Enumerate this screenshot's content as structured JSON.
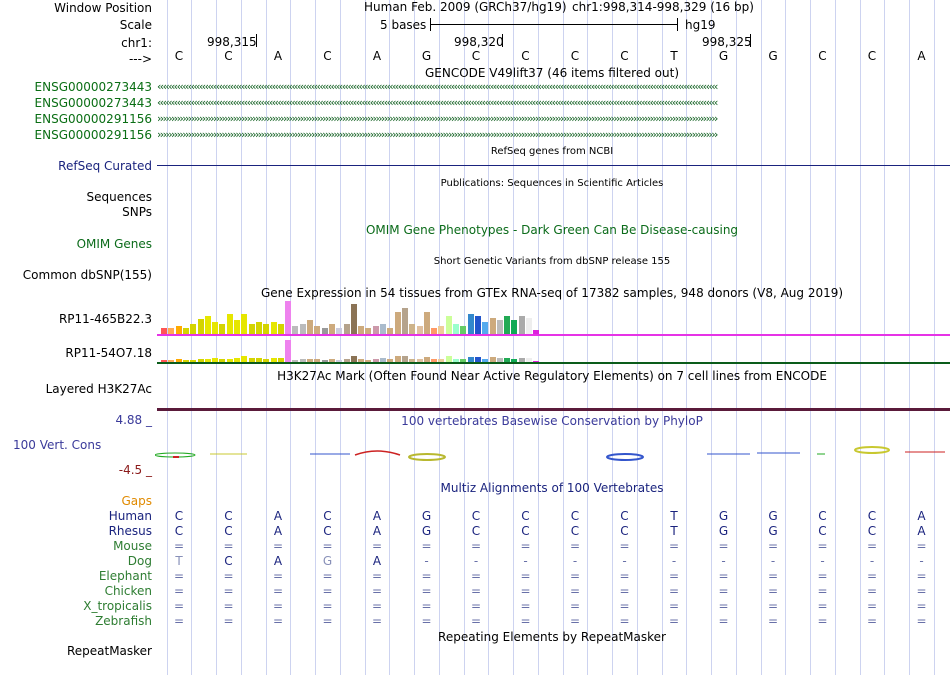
{
  "labels": {
    "window_position": "Window Position",
    "scale": "Scale",
    "chr": "chr1:",
    "strand": "--->",
    "tracks": [
      {
        "text": "ENSG00000273443",
        "color": "#0a6e14"
      },
      {
        "text": "ENSG00000273443",
        "color": "#0a6e14"
      },
      {
        "text": "ENSG00000291156",
        "color": "#0a6e14"
      },
      {
        "text": "ENSG00000291156",
        "color": "#0a6e14"
      }
    ],
    "refseq": "RefSeq Curated",
    "sequences": "Sequences",
    "snps": "SNPs",
    "omim": "OMIM Genes",
    "dbsnp": "Common dbSNP(155)",
    "rp1": "RP11-465B22.3",
    "rp2": "RP11-54O7.18",
    "h3k27": "Layered H3K27Ac",
    "phylop_top": "4.88 _",
    "phylop_label": "100 Vert. Cons",
    "phylop_bottom": "-4.5 _",
    "gaps": "Gaps",
    "species": [
      {
        "name": "Human",
        "color": "#1a237e"
      },
      {
        "name": "Rhesus",
        "color": "#1a237e"
      },
      {
        "name": "Mouse",
        "color": "#2e7d32"
      },
      {
        "name": "Dog",
        "color": "#2e7d32"
      },
      {
        "name": "Elephant",
        "color": "#2e7d32"
      },
      {
        "name": "Chicken",
        "color": "#2e7d32"
      },
      {
        "name": "X_tropicalis",
        "color": "#2e7d32"
      },
      {
        "name": "Zebrafish",
        "color": "#2e7d32"
      }
    ],
    "repeatmasker": "RepeatMasker"
  },
  "header": {
    "assembly": "Human Feb. 2009 (GRCh37/hg19)",
    "position": "chr1:998,314-998,329 (16 bp)",
    "scale_text": "5 bases",
    "scale_db": "hg19",
    "coords": [
      "998,315",
      "998,320",
      "998,325"
    ]
  },
  "bases": [
    "C",
    "C",
    "A",
    "C",
    "A",
    "G",
    "C",
    "C",
    "C",
    "C",
    "T",
    "G",
    "G",
    "C",
    "C",
    "A"
  ],
  "track_titles": {
    "gencode": "GENCODE V49lift37 (46 items filtered out)",
    "refseq": "RefSeq genes from NCBI",
    "publications": "Publications: Sequences in Scientific Articles",
    "omim": "OMIM Gene Phenotypes - Dark Green Can Be Disease-causing",
    "dbsnp": "Short Genetic Variants from dbSNP release 155",
    "gtex": "Gene Expression in 54 tissues from GTEx RNA-seq of 17382 samples, 948 donors (V8, Aug 2019)",
    "h3k27": "H3K27Ac Mark (Often Found Near Active Regulatory Elements) on 7 cell lines from ENCODE",
    "phylop": "100 vertebrates Basewise Conservation by PhyloP",
    "multiz": "Multiz Alignments of 100 Vertebrates",
    "repeat": "Repeating Elements by RepeatMasker"
  },
  "alignments": {
    "Human": [
      "C",
      "C",
      "A",
      "C",
      "A",
      "G",
      "C",
      "C",
      "C",
      "C",
      "T",
      "G",
      "G",
      "C",
      "C",
      "A"
    ],
    "Rhesus": [
      "C",
      "C",
      "A",
      "C",
      "A",
      "G",
      "C",
      "C",
      "C",
      "C",
      "T",
      "G",
      "G",
      "C",
      "C",
      "A"
    ],
    "Mouse": [
      "=",
      "=",
      "=",
      "=",
      "=",
      "=",
      "=",
      "=",
      "=",
      "=",
      "=",
      "=",
      "=",
      "=",
      "=",
      "="
    ],
    "Dog": [
      "T",
      "C",
      "A",
      "G",
      "A",
      "-",
      "-",
      "-",
      "-",
      "-",
      "-",
      "-",
      "-",
      "-",
      "-",
      "-"
    ],
    "Elephant": [
      "=",
      "=",
      "=",
      "=",
      "=",
      "=",
      "=",
      "=",
      "=",
      "=",
      "=",
      "=",
      "=",
      "=",
      "=",
      "="
    ],
    "Chicken": [
      "=",
      "=",
      "=",
      "=",
      "=",
      "=",
      "=",
      "=",
      "=",
      "=",
      "=",
      "=",
      "=",
      "=",
      "=",
      "="
    ],
    "X_tropicalis": [
      "=",
      "=",
      "=",
      "=",
      "=",
      "=",
      "=",
      "=",
      "=",
      "=",
      "=",
      "=",
      "=",
      "=",
      "=",
      "="
    ],
    "Zebrafish": [
      "=",
      "=",
      "=",
      "=",
      "=",
      "=",
      "=",
      "=",
      "=",
      "=",
      "=",
      "=",
      "=",
      "=",
      "=",
      "="
    ]
  },
  "colors": {
    "label_blue": "#1a237e",
    "label_green": "#0a6e14",
    "omim_green": "#0b6b1a",
    "phylop_blue": "#3a3a9a",
    "phylop_red": "#8b1a1a",
    "gaps_orange": "#e08a00",
    "gtex_line": "#e633e6",
    "h3k_line": "#5a1a3a"
  },
  "gtex_bars": {
    "rp1": [
      6,
      6,
      8,
      6,
      10,
      15,
      18,
      12,
      10,
      20,
      14,
      20,
      10,
      12,
      10,
      12,
      10,
      33,
      8,
      10,
      14,
      8,
      6,
      10,
      6,
      10,
      30,
      8,
      6,
      8,
      10,
      6,
      22,
      26,
      10,
      8,
      22,
      6,
      8,
      18,
      10,
      8,
      20,
      18,
      12,
      16,
      14,
      18,
      14,
      18,
      16,
      4
    ],
    "rp2": [
      2,
      2,
      3,
      2,
      2,
      3,
      3,
      4,
      3,
      3,
      4,
      6,
      4,
      4,
      3,
      4,
      4,
      22,
      2,
      3,
      3,
      3,
      2,
      3,
      2,
      3,
      6,
      3,
      2,
      3,
      4,
      3,
      6,
      6,
      3,
      3,
      5,
      3,
      3,
      6,
      3,
      3,
      5,
      5,
      3,
      5,
      4,
      4,
      3,
      4,
      4,
      1
    ],
    "colors": [
      "#ff5555",
      "#ffaa55",
      "#ffaa00",
      "#d4d400",
      "#d4d400",
      "#d4d400",
      "#e6e600",
      "#e6e600",
      "#d4d400",
      "#e6e600",
      "#e6e600",
      "#e6e600",
      "#d4d400",
      "#d4d400",
      "#d4d400",
      "#e6e600",
      "#d4d400",
      "#ee82ee",
      "#bbbbbb",
      "#bbbbbb",
      "#cdaa7d",
      "#cdaa7d",
      "#999999",
      "#cdaa7d",
      "#ccccdd",
      "#b5a38c",
      "#8b7355",
      "#cdaa7d",
      "#cdaa7d",
      "#cc99aa",
      "#aabbcc",
      "#cdaa7d",
      "#cdaa7d",
      "#b5a38c",
      "#cdb38b",
      "#e0c0a0",
      "#cdaa7d",
      "#ff9966",
      "#eecc99",
      "#ccff99",
      "#99ffcc",
      "#66cc66",
      "#3388cc",
      "#2255cc",
      "#55aaee",
      "#cdaa7d",
      "#bbbbbb",
      "#22aa55",
      "#11aa55",
      "#aaaaaa",
      "#eeeeee",
      "#dd22dd"
    ]
  }
}
